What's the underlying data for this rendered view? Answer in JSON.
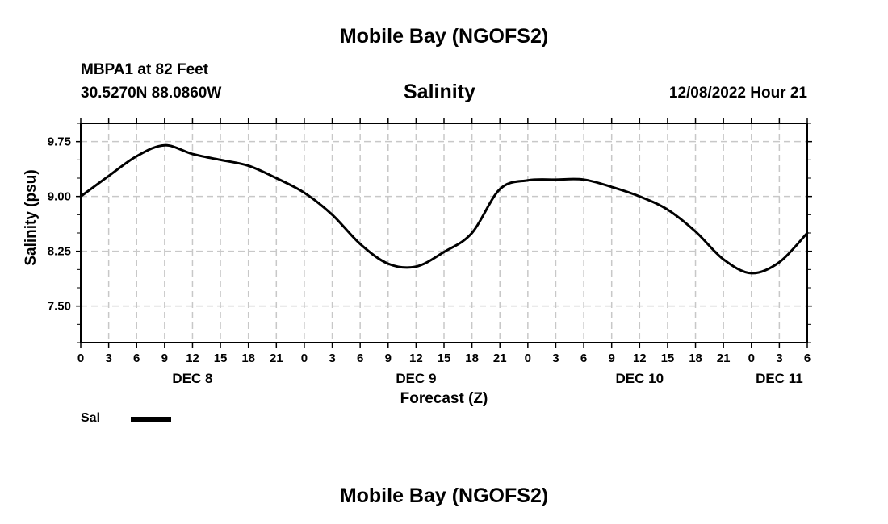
{
  "page_title": "Mobile Bay (NGOFS2)",
  "footer_title": "Mobile Bay (NGOFS2)",
  "station": {
    "line1": "MBPA1 at 82 Feet",
    "line2": "30.5270N  88.0860W"
  },
  "timestamp": "12/08/2022 Hour 21",
  "legend": {
    "label": "Sal"
  },
  "colors": {
    "line": "#000000",
    "grid": "#c8c8c8",
    "axis": "#000000"
  },
  "chart_data": {
    "type": "line",
    "title": "Salinity",
    "xlabel": "Forecast (Z)",
    "ylabel": "Salinity (psu)",
    "x_unit": "forecast hour",
    "xlim": [
      0,
      78
    ],
    "ylim": [
      7.0,
      10.0
    ],
    "grid": true,
    "legend_position": "bottom-left",
    "yticks": [
      7.5,
      8.25,
      9.0,
      9.75
    ],
    "ytick_labels": [
      "7.50",
      "8.25",
      "9.00",
      "9.75"
    ],
    "xtick_hours": [
      0,
      3,
      6,
      9,
      12,
      15,
      18,
      21,
      24,
      27,
      30,
      33,
      36,
      39,
      42,
      45,
      48,
      51,
      54,
      57,
      60,
      63,
      66,
      69,
      72,
      75,
      78
    ],
    "xtick_labels": [
      "0",
      "3",
      "6",
      "9",
      "12",
      "15",
      "18",
      "21",
      "0",
      "3",
      "6",
      "9",
      "12",
      "15",
      "18",
      "21",
      "0",
      "3",
      "6",
      "9",
      "12",
      "15",
      "18",
      "21",
      "0",
      "3",
      "6"
    ],
    "date_labels": [
      {
        "hour": 12,
        "label": "DEC 8"
      },
      {
        "hour": 36,
        "label": "DEC 9"
      },
      {
        "hour": 60,
        "label": "DEC 10"
      },
      {
        "hour": 75,
        "label": "DEC 11"
      }
    ],
    "series": [
      {
        "name": "Sal",
        "x": [
          0,
          3,
          6,
          9,
          12,
          15,
          18,
          21,
          24,
          27,
          30,
          33,
          36,
          39,
          42,
          45,
          48,
          51,
          54,
          57,
          60,
          63,
          66,
          69,
          72,
          75,
          78
        ],
        "values": [
          9.0,
          9.28,
          9.55,
          9.7,
          9.58,
          9.5,
          9.42,
          9.25,
          9.05,
          8.75,
          8.35,
          8.08,
          8.04,
          8.24,
          8.5,
          9.1,
          9.22,
          9.23,
          9.23,
          9.13,
          9.0,
          8.82,
          8.52,
          8.14,
          7.95,
          8.1,
          8.5
        ]
      }
    ]
  }
}
